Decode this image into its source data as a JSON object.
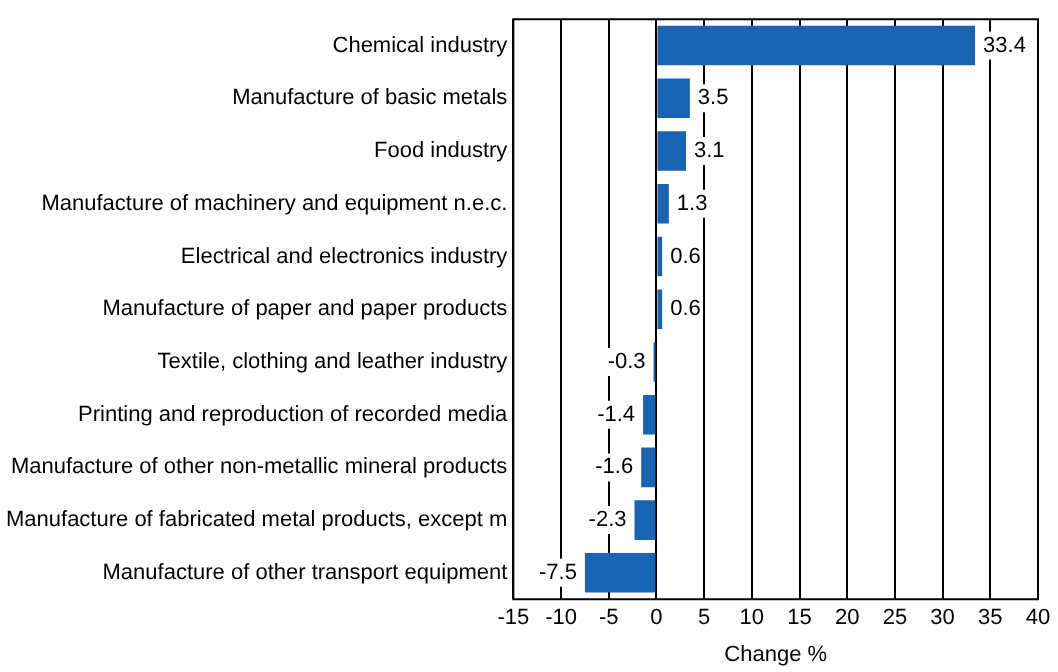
{
  "chart_data": {
    "type": "bar",
    "orientation": "horizontal",
    "xlabel": "Change %",
    "categories": [
      "Chemical industry",
      "Manufacture of basic metals",
      "Food industry",
      "Manufacture of machinery and equipment n.e.c.",
      "Electrical and electronics industry",
      "Manufacture of paper and paper products",
      "Textile, clothing and leather industry",
      "Printing and reproduction of recorded media",
      "Manufacture of other non-metallic mineral products",
      "Manufacture of fabricated metal products, except m",
      "Manufacture of other transport equipment"
    ],
    "values": [
      33.4,
      3.5,
      3.1,
      1.3,
      0.6,
      0.6,
      -0.3,
      -1.4,
      -1.6,
      -2.3,
      -7.5
    ],
    "color": "#1a63b0",
    "xlim": [
      -15,
      40
    ],
    "xticks": [
      -15,
      -10,
      -5,
      0,
      5,
      10,
      15,
      20,
      25,
      30,
      35,
      40
    ],
    "grid": "x",
    "data_labels": true,
    "legend": false
  }
}
